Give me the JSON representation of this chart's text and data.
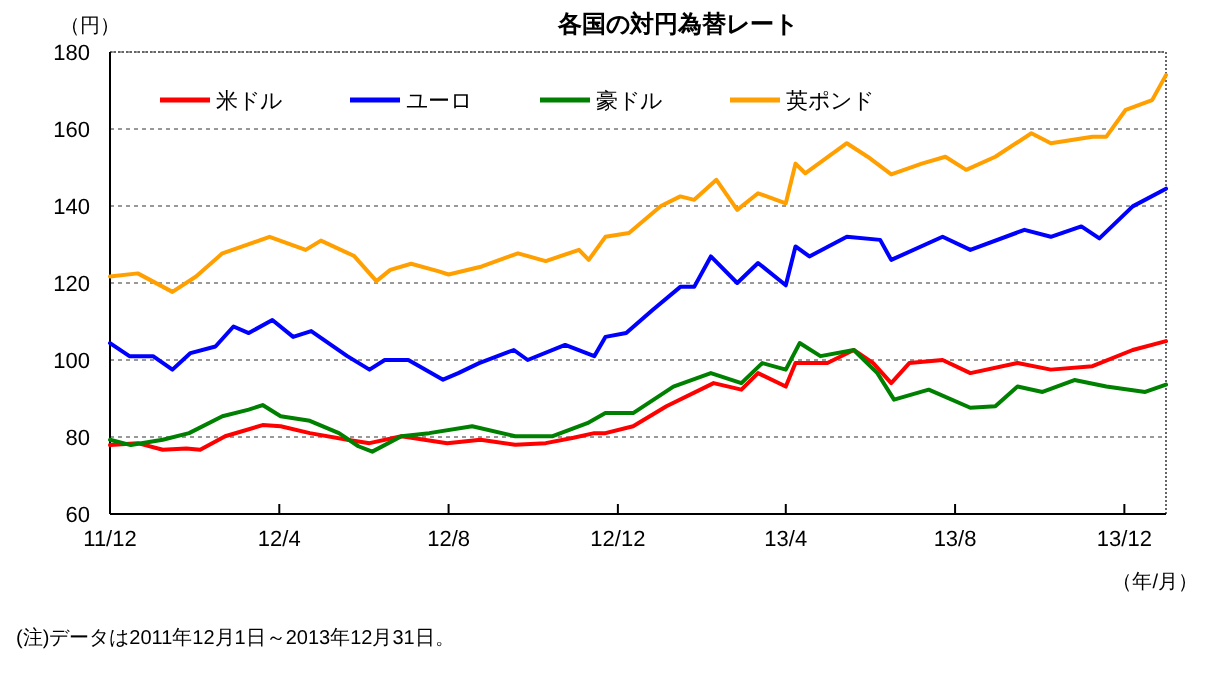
{
  "chart_data": {
    "type": "line",
    "title": "各国の対円為替レート",
    "ylabel": "（円）",
    "xlabel": "（年/月）",
    "annotations": [
      "(注)データは2011年12月1日～2013年12月31日。"
    ],
    "xlim": [
      "2011-12-01",
      "2013-12-31"
    ],
    "xticks": [
      {
        "value": "2011-12",
        "label": "11/12"
      },
      {
        "value": "2012-04",
        "label": "12/4"
      },
      {
        "value": "2012-08",
        "label": "12/8"
      },
      {
        "value": "2012-12",
        "label": "12/12"
      },
      {
        "value": "2013-04",
        "label": "13/4"
      },
      {
        "value": "2013-08",
        "label": "13/8"
      },
      {
        "value": "2013-12",
        "label": "13/12"
      }
    ],
    "ylim": [
      60,
      180
    ],
    "yticks": [
      60,
      80,
      100,
      120,
      140,
      160,
      180
    ],
    "grid": "y",
    "legend": "top left",
    "line_style": "solid",
    "series": [
      {
        "name": "米ドル",
        "color": "#ff0000",
        "x": [
          "2011-12-01",
          "2011-12-21",
          "2012-01-08",
          "2012-01-25",
          "2012-02-04",
          "2012-02-22",
          "2012-03-20",
          "2012-04-02",
          "2012-04-23",
          "2012-05-20",
          "2012-06-05",
          "2012-06-28",
          "2012-07-31",
          "2012-08-24",
          "2012-09-18",
          "2012-10-10",
          "2012-10-30",
          "2012-11-14",
          "2012-11-22",
          "2012-12-12",
          "2013-01-05",
          "2013-02-08",
          "2013-02-28",
          "2013-03-12",
          "2013-04-01",
          "2013-04-08",
          "2013-05-01",
          "2013-05-20",
          "2013-06-03",
          "2013-06-16",
          "2013-06-29",
          "2013-07-23",
          "2013-08-12",
          "2013-09-15",
          "2013-10-09",
          "2013-11-08",
          "2013-12-07",
          "2013-12-31"
        ],
        "values": [
          77.9,
          78.4,
          76.7,
          77,
          76.7,
          80.2,
          83.1,
          82.8,
          81,
          79.3,
          78.4,
          80.2,
          78.4,
          79.3,
          78,
          78.4,
          79.8,
          81,
          81,
          82.8,
          88,
          94,
          92.3,
          96.6,
          93.1,
          99.2,
          99.2,
          102.6,
          99.2,
          94,
          99.2,
          100,
          96.6,
          99.2,
          97.5,
          98.4,
          102.6,
          104.9
        ]
      },
      {
        "name": "ユーロ",
        "color": "#0000ff",
        "x": [
          "2011-12-01",
          "2011-12-15",
          "2012-01-01",
          "2012-01-15",
          "2012-01-28",
          "2012-02-15",
          "2012-02-28",
          "2012-03-10",
          "2012-03-27",
          "2012-04-11",
          "2012-04-24",
          "2012-05-20",
          "2012-06-05",
          "2012-06-16",
          "2012-07-03",
          "2012-07-28",
          "2012-08-08",
          "2012-08-23",
          "2012-09-17",
          "2012-09-27",
          "2012-10-24",
          "2012-11-14",
          "2012-11-22",
          "2012-12-07",
          "2012-12-26",
          "2013-01-15",
          "2013-01-25",
          "2013-02-06",
          "2013-02-25",
          "2013-03-12",
          "2013-04-01",
          "2013-04-08",
          "2013-04-18",
          "2013-05-15",
          "2013-06-08",
          "2013-06-16",
          "2013-07-23",
          "2013-08-12",
          "2013-09-20",
          "2013-10-09",
          "2013-10-31",
          "2013-11-13",
          "2013-12-07",
          "2013-12-31"
        ],
        "values": [
          104.4,
          101,
          101,
          97.5,
          101.8,
          103.5,
          108.7,
          107,
          110.4,
          106,
          107.5,
          101,
          97.5,
          100,
          100,
          94.9,
          96.6,
          99.2,
          102.6,
          100,
          103.9,
          101,
          106,
          107,
          113,
          119,
          119,
          126.9,
          120,
          125.2,
          119.4,
          129.5,
          126.9,
          132,
          131.2,
          126,
          132,
          128.6,
          133.8,
          132,
          134.7,
          131.6,
          139.9,
          144.5
        ]
      },
      {
        "name": "豪ドル",
        "color": "#008000",
        "x": [
          "2011-12-01",
          "2011-12-16",
          "2012-01-08",
          "2012-01-27",
          "2012-02-20",
          "2012-03-10",
          "2012-03-20",
          "2012-04-02",
          "2012-04-23",
          "2012-05-14",
          "2012-05-28",
          "2012-06-07",
          "2012-06-28",
          "2012-07-18",
          "2012-08-18",
          "2012-09-18",
          "2012-10-15",
          "2012-11-09",
          "2012-11-22",
          "2012-12-12",
          "2013-01-10",
          "2013-02-06",
          "2013-02-28",
          "2013-03-15",
          "2013-04-01",
          "2013-04-11",
          "2013-04-26",
          "2013-05-20",
          "2013-06-06",
          "2013-06-18",
          "2013-07-13",
          "2013-08-12",
          "2013-08-30",
          "2013-09-15",
          "2013-10-03",
          "2013-10-26",
          "2013-11-18",
          "2013-12-16",
          "2013-12-31"
        ],
        "values": [
          79.3,
          77.9,
          79.3,
          81,
          85.4,
          87.1,
          88.3,
          85.4,
          84.2,
          81,
          77.6,
          76.2,
          80.2,
          81,
          82.8,
          80.2,
          80.2,
          83.6,
          86.2,
          86.2,
          93.1,
          96.6,
          94,
          99.2,
          97.5,
          104.4,
          101,
          102.6,
          96.6,
          89.7,
          92.3,
          87.6,
          88,
          93.1,
          91.7,
          94.8,
          93.1,
          91.7,
          93.6
        ]
      },
      {
        "name": "英ポンド",
        "color": "#ffa000",
        "x": [
          "2011-12-01",
          "2011-12-21",
          "2012-01-15",
          "2012-02-01",
          "2012-02-20",
          "2012-03-25",
          "2012-04-20",
          "2012-05-01",
          "2012-05-25",
          "2012-06-10",
          "2012-06-20",
          "2012-07-05",
          "2012-07-25",
          "2012-08-01",
          "2012-08-25",
          "2012-09-20",
          "2012-10-10",
          "2012-11-03",
          "2012-11-10",
          "2012-11-22",
          "2012-12-09",
          "2013-01-01",
          "2013-01-15",
          "2013-01-25",
          "2013-02-10",
          "2013-02-25",
          "2013-03-12",
          "2013-04-01",
          "2013-04-08",
          "2013-04-15",
          "2013-05-15",
          "2013-05-30",
          "2013-06-16",
          "2013-07-08",
          "2013-07-25",
          "2013-08-09",
          "2013-08-30",
          "2013-09-25",
          "2013-10-09",
          "2013-11-08",
          "2013-11-18",
          "2013-12-02",
          "2013-12-21",
          "2013-12-31"
        ],
        "values": [
          121.7,
          122.5,
          117.7,
          121.7,
          127.7,
          132,
          128.6,
          131,
          127,
          120.5,
          123.4,
          125,
          123,
          122.2,
          124.3,
          127.7,
          125.7,
          128.6,
          126,
          132,
          133,
          140,
          142.5,
          141.6,
          146.8,
          139,
          143.3,
          140.7,
          151,
          148.5,
          156.3,
          152.8,
          148.2,
          151,
          152.8,
          149.4,
          152.8,
          158.9,
          156.3,
          158,
          158,
          165,
          167.5,
          174
        ]
      }
    ]
  }
}
